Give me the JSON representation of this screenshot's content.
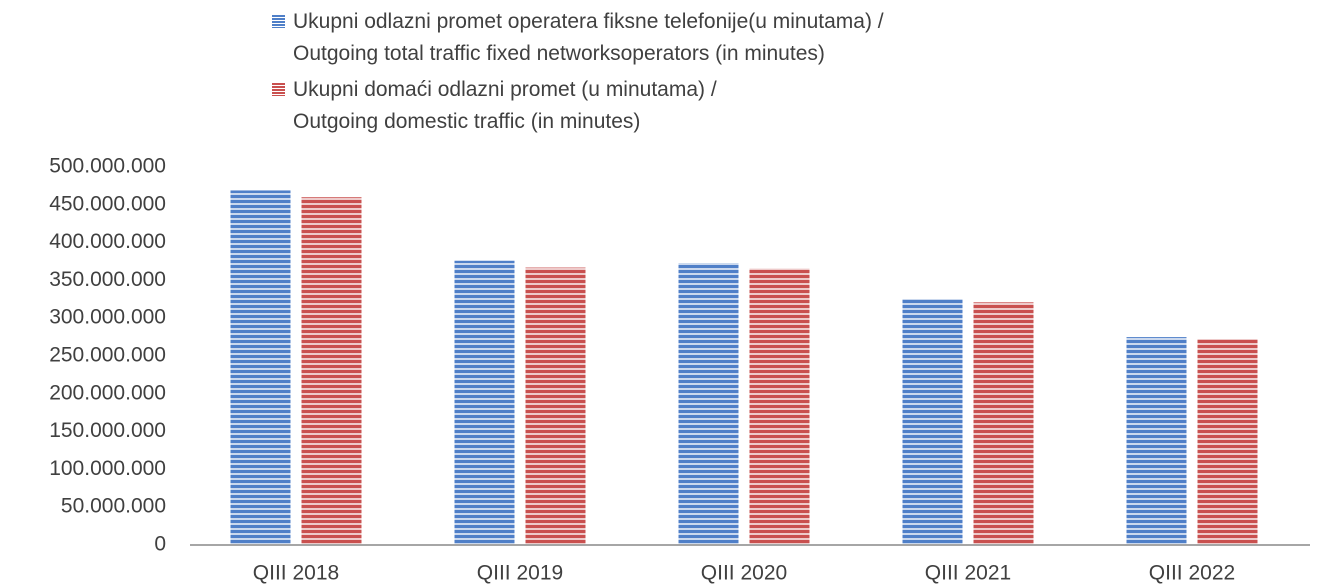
{
  "chart_data": {
    "type": "bar",
    "categories": [
      "QIII 2018",
      "QIII 2019",
      "QIII 2020",
      "QIII 2021",
      "QIII 2022"
    ],
    "series": [
      {
        "name": "Ukupni odlazni promet operatera fiksne telefonije(u minutama) /\nOutgoing total traffic fixed networksoperators (in minutes)",
        "color": "#4f7fc8",
        "values": [
          469000000,
          376000000,
          373000000,
          325000000,
          275000000
        ]
      },
      {
        "name": "Ukupni domaći odlazni promet (u minutama) /\nOutgoing domestic traffic  (in minutes)",
        "color": "#c9504f",
        "values": [
          460000000,
          367000000,
          366000000,
          321000000,
          272000000
        ]
      }
    ],
    "ylim": [
      0,
      500000000
    ],
    "yticks": [
      0,
      {
        "value": 50000000,
        "label": "50.000.000"
      },
      {
        "value": 100000000,
        "label": "100.000.000"
      },
      {
        "value": 150000000,
        "label": "150.000.000"
      },
      {
        "value": 200000000,
        "label": "200.000.000"
      },
      {
        "value": 250000000,
        "label": "250.000.000"
      },
      {
        "value": 300000000,
        "label": "300.000.000"
      },
      {
        "value": 350000000,
        "label": "350.000.000"
      },
      {
        "value": 400000000,
        "label": "400.000.000"
      },
      {
        "value": 450000000,
        "label": "450.000.000"
      },
      {
        "value": 500000000,
        "label": "500.000.000"
      }
    ],
    "grid": false,
    "legend": "top"
  }
}
